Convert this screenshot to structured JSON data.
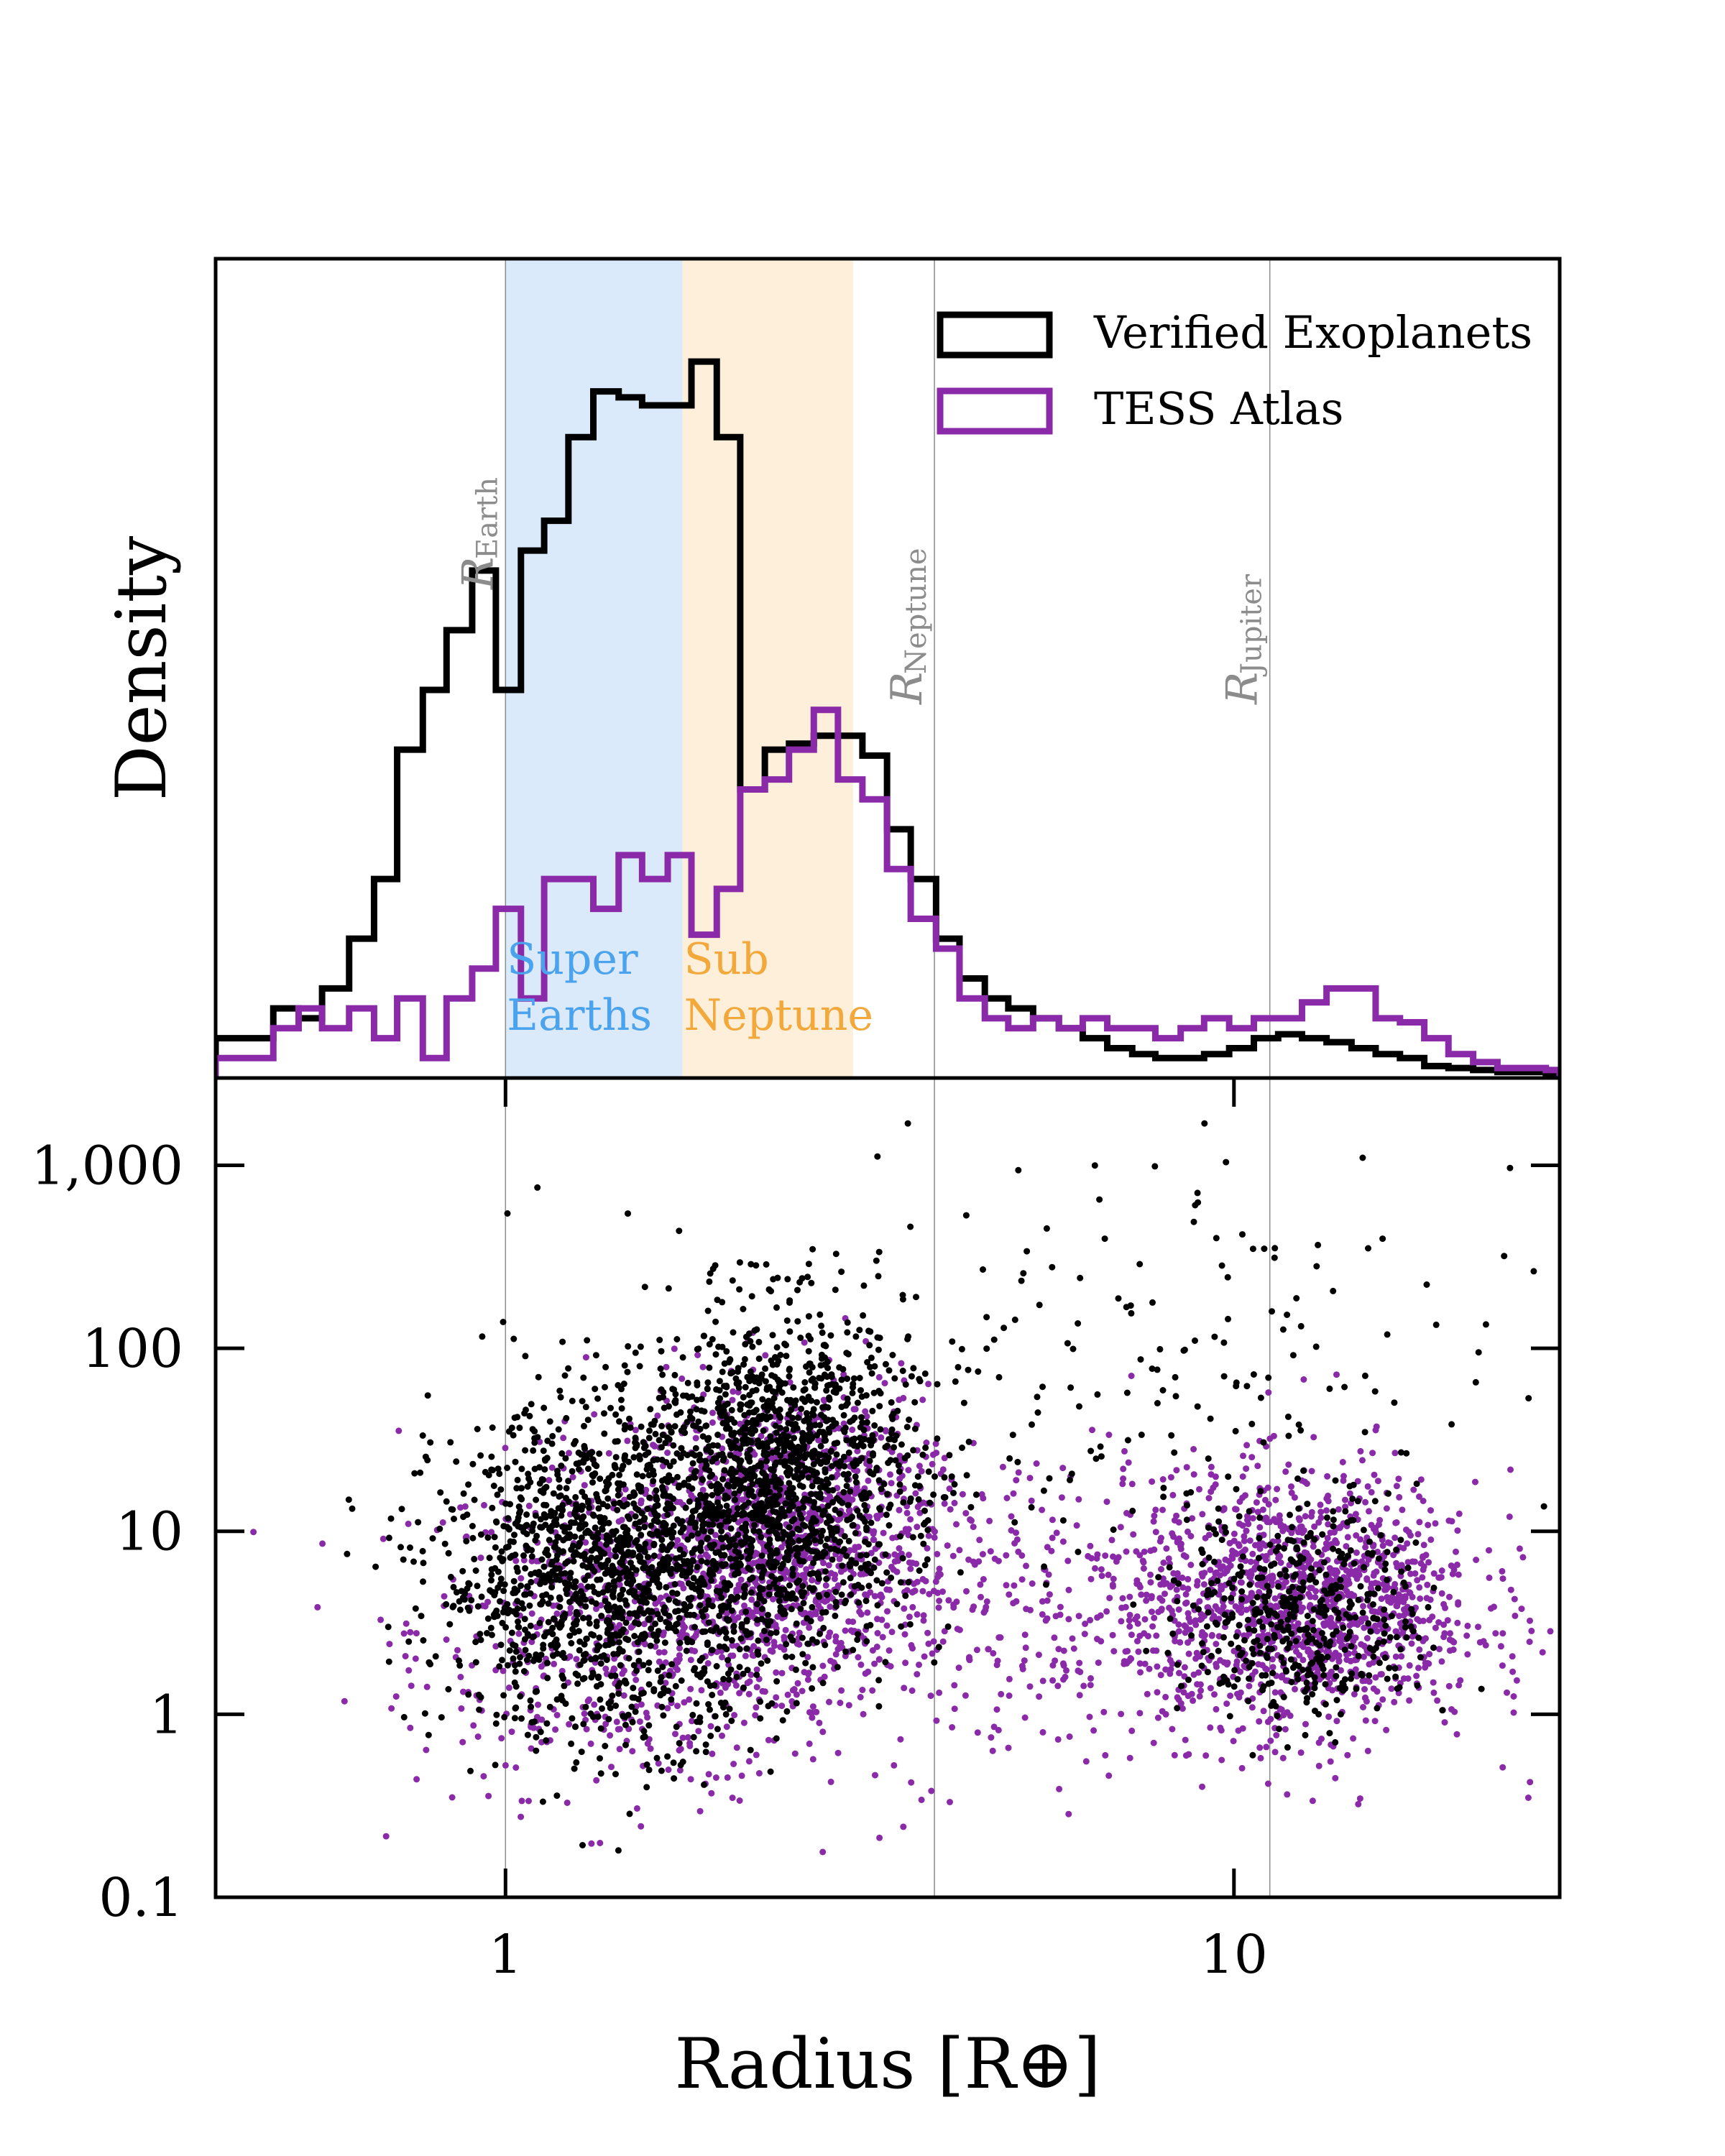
{
  "chart_data": [
    {
      "type": "histogram",
      "panel": "top",
      "ylabel": "Density",
      "x_scale": "log",
      "xlim": [
        0.4,
        28
      ],
      "legend_position": "top-right",
      "series": [
        {
          "name": "Verified Exoplanets",
          "color": "#000000",
          "bin_edges": [
            0.4,
            0.44,
            0.48,
            0.52,
            0.56,
            0.61,
            0.66,
            0.71,
            0.77,
            0.83,
            0.9,
            0.97,
            1.05,
            1.13,
            1.22,
            1.32,
            1.43,
            1.54,
            1.67,
            1.8,
            1.95,
            2.1,
            2.27,
            2.45,
            2.65,
            2.86,
            3.09,
            3.34,
            3.6,
            3.9,
            4.2,
            4.55,
            4.9,
            5.3,
            5.75,
            6.2,
            6.7,
            7.25,
            7.8,
            8.45,
            9.1,
            9.85,
            10.65,
            11.5,
            12.4,
            13.4,
            14.5,
            15.65,
            16.9,
            18.25,
            19.7,
            21.3,
            23,
            24.8,
            26.8,
            28
          ],
          "density": [
            0.2,
            0.2,
            0.35,
            0.3,
            0.45,
            0.7,
            1.0,
            1.65,
            1.95,
            2.25,
            2.55,
            1.95,
            2.65,
            2.8,
            3.22,
            3.45,
            3.42,
            3.38,
            3.38,
            3.6,
            3.22,
            1.45,
            1.65,
            1.68,
            1.72,
            1.72,
            1.62,
            1.25,
            1.0,
            0.7,
            0.5,
            0.4,
            0.35,
            0.3,
            0.25,
            0.2,
            0.15,
            0.12,
            0.1,
            0.1,
            0.12,
            0.15,
            0.2,
            0.22,
            0.2,
            0.18,
            0.15,
            0.12,
            0.1,
            0.06,
            0.05,
            0.04,
            0.03,
            0.03,
            0.02
          ]
        },
        {
          "name": "TESS Atlas",
          "color": "#8a2aa8",
          "bin_edges": [
            0.4,
            0.44,
            0.48,
            0.52,
            0.56,
            0.61,
            0.66,
            0.71,
            0.77,
            0.83,
            0.9,
            0.97,
            1.05,
            1.13,
            1.22,
            1.32,
            1.43,
            1.54,
            1.67,
            1.8,
            1.95,
            2.1,
            2.27,
            2.45,
            2.65,
            2.86,
            3.09,
            3.34,
            3.6,
            3.9,
            4.2,
            4.55,
            4.9,
            5.3,
            5.75,
            6.2,
            6.7,
            7.25,
            7.8,
            8.45,
            9.1,
            9.85,
            10.65,
            11.5,
            12.4,
            13.4,
            14.5,
            15.65,
            16.9,
            18.25,
            19.7,
            21.3,
            23,
            24.8,
            26.8,
            28
          ],
          "density": [
            0.1,
            0.1,
            0.25,
            0.35,
            0.25,
            0.35,
            0.2,
            0.4,
            0.1,
            0.4,
            0.55,
            0.85,
            0.4,
            1.0,
            1.0,
            0.85,
            1.12,
            1.0,
            1.12,
            0.72,
            0.95,
            1.45,
            1.5,
            1.65,
            1.85,
            1.5,
            1.4,
            1.05,
            0.8,
            0.65,
            0.4,
            0.3,
            0.25,
            0.3,
            0.25,
            0.3,
            0.25,
            0.25,
            0.2,
            0.25,
            0.3,
            0.25,
            0.3,
            0.3,
            0.38,
            0.45,
            0.45,
            0.3,
            0.28,
            0.2,
            0.12,
            0.08,
            0.05,
            0.05,
            0.04
          ]
        }
      ],
      "reference_lines": [
        {
          "label": "R",
          "sub": "Earth",
          "x": 1.0
        },
        {
          "label": "R",
          "sub": "Neptune",
          "x": 3.88
        },
        {
          "label": "R",
          "sub": "Jupiter",
          "x": 11.2
        }
      ],
      "bands": [
        {
          "label_lines": [
            "Super",
            "Earths"
          ],
          "from": 1.0,
          "to": 1.75,
          "color": "#dbeafb",
          "text_color": "#4aa3ec"
        },
        {
          "label_lines": [
            "Sub",
            "Neptune"
          ],
          "from": 1.75,
          "to": 3.0,
          "color": "#fdefd9",
          "text_color": "#f2a83a"
        }
      ]
    },
    {
      "type": "scatter",
      "panel": "bottom",
      "xlabel": "Radius [R⊕]",
      "x_scale": "log",
      "y_scale": "log",
      "xlim": [
        0.4,
        28
      ],
      "ylim": [
        0.1,
        3000
      ],
      "x_ticks": [
        {
          "value": 1,
          "label": "1"
        },
        {
          "value": 10,
          "label": "10"
        }
      ],
      "y_ticks": [
        {
          "value": 0.1,
          "label": "0.1"
        },
        {
          "value": 1,
          "label": "1"
        },
        {
          "value": 10,
          "label": "10"
        },
        {
          "value": 100,
          "label": "100"
        },
        {
          "value": 1000,
          "label": "1,000"
        }
      ],
      "series": [
        {
          "name": "Verified Exoplanets",
          "color": "#000000",
          "clusters": [
            {
              "x_center": 1.4,
              "x_sigma_dex": 0.12,
              "y_center": 6,
              "y_sigma_dex": 0.45,
              "n": 1500
            },
            {
              "x_center": 2.4,
              "x_sigma_dex": 0.09,
              "y_center": 20,
              "y_sigma_dex": 0.45,
              "n": 1300
            },
            {
              "x_center": 12.5,
              "x_sigma_dex": 0.08,
              "y_center": 3.5,
              "y_sigma_dex": 0.3,
              "n": 450
            },
            {
              "x_center": 6.0,
              "x_sigma_dex": 0.3,
              "y_center": 60,
              "y_sigma_dex": 0.6,
              "n": 220
            }
          ]
        },
        {
          "name": "TESS Atlas",
          "color": "#8a2aa8",
          "clusters": [
            {
              "x_center": 1.5,
              "x_sigma_dex": 0.15,
              "y_center": 3,
              "y_sigma_dex": 0.45,
              "n": 600
            },
            {
              "x_center": 2.4,
              "x_sigma_dex": 0.1,
              "y_center": 10,
              "y_sigma_dex": 0.4,
              "n": 1000
            },
            {
              "x_center": 5.0,
              "x_sigma_dex": 0.25,
              "y_center": 4,
              "y_sigma_dex": 0.45,
              "n": 500
            },
            {
              "x_center": 12.5,
              "x_sigma_dex": 0.12,
              "y_center": 4,
              "y_sigma_dex": 0.35,
              "n": 1300
            }
          ]
        }
      ]
    }
  ],
  "legend": [
    {
      "label": "Verified Exoplanets",
      "color": "#000000"
    },
    {
      "label": "TESS Atlas",
      "color": "#8a2aa8"
    }
  ]
}
